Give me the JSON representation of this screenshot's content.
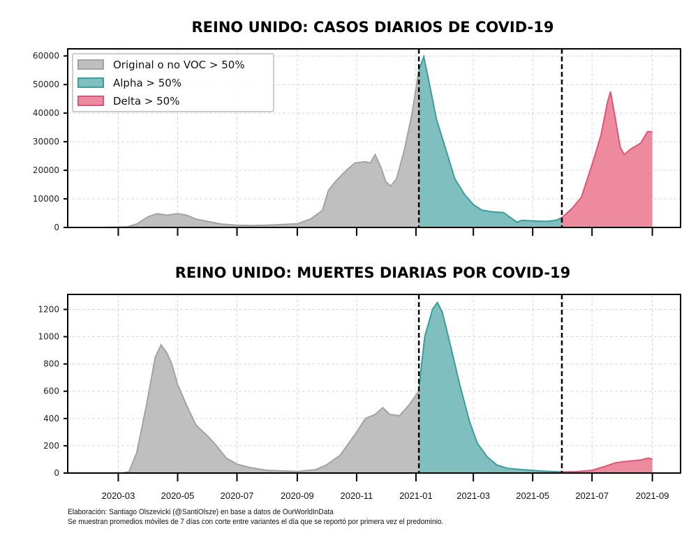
{
  "chart_data": [
    {
      "type": "area",
      "title": "REINO UNIDO: CASOS DIARIOS DE COVID-19",
      "xlabel": "",
      "ylabel": "",
      "xlim": [
        "2020-01-09",
        "2021-09-30"
      ],
      "ylim": [
        0,
        62500
      ],
      "yticks": [
        0,
        10000,
        20000,
        30000,
        40000,
        50000,
        60000
      ],
      "xticks": [
        "2020-03",
        "2020-05",
        "2020-07",
        "2020-09",
        "2020-11",
        "2021-01",
        "2021-03",
        "2021-05",
        "2021-07",
        "2021-09"
      ],
      "show_xtick_labels": false,
      "grid": true,
      "legend_position": "top-left",
      "vlines": [
        "2021-01-04",
        "2021-05-31"
      ],
      "series": [
        {
          "name": "Original o no VOC > 50%",
          "color": "#bfbfbf",
          "edge": "#a3a3a3",
          "points": [
            [
              "2020-02-15",
              0
            ],
            [
              "2020-03-10",
              200
            ],
            [
              "2020-03-20",
              1200
            ],
            [
              "2020-04-01",
              3800
            ],
            [
              "2020-04-10",
              4800
            ],
            [
              "2020-04-20",
              4300
            ],
            [
              "2020-05-01",
              4800
            ],
            [
              "2020-05-10",
              4300
            ],
            [
              "2020-05-20",
              2900
            ],
            [
              "2020-06-01",
              2100
            ],
            [
              "2020-06-15",
              1200
            ],
            [
              "2020-07-01",
              800
            ],
            [
              "2020-07-15",
              650
            ],
            [
              "2020-08-01",
              800
            ],
            [
              "2020-08-15",
              1000
            ],
            [
              "2020-09-01",
              1300
            ],
            [
              "2020-09-15",
              3000
            ],
            [
              "2020-09-27",
              6000
            ],
            [
              "2020-10-03",
              13000
            ],
            [
              "2020-10-10",
              16000
            ],
            [
              "2020-10-20",
              19500
            ],
            [
              "2020-10-30",
              22500
            ],
            [
              "2020-11-10",
              23000
            ],
            [
              "2020-11-15",
              22500
            ],
            [
              "2020-11-20",
              25500
            ],
            [
              "2020-11-26",
              21000
            ],
            [
              "2020-12-01",
              16000
            ],
            [
              "2020-12-06",
              14500
            ],
            [
              "2020-12-12",
              17000
            ],
            [
              "2020-12-20",
              27000
            ],
            [
              "2020-12-28",
              40000
            ],
            [
              "2021-01-04",
              55000
            ]
          ]
        },
        {
          "name": "Alpha > 50%",
          "color": "#7fbfbf",
          "edge": "#3d9c9c",
          "points": [
            [
              "2021-01-04",
              55000
            ],
            [
              "2021-01-09",
              59800
            ],
            [
              "2021-01-15",
              50000
            ],
            [
              "2021-01-22",
              38000
            ],
            [
              "2021-02-01",
              27000
            ],
            [
              "2021-02-10",
              17000
            ],
            [
              "2021-02-20",
              11500
            ],
            [
              "2021-03-01",
              8000
            ],
            [
              "2021-03-10",
              6000
            ],
            [
              "2021-03-20",
              5500
            ],
            [
              "2021-04-01",
              5200
            ],
            [
              "2021-04-10",
              3000
            ],
            [
              "2021-04-15",
              1800
            ],
            [
              "2021-04-20",
              2500
            ],
            [
              "2021-05-01",
              2300
            ],
            [
              "2021-05-15",
              2100
            ],
            [
              "2021-05-25",
              2500
            ],
            [
              "2021-05-31",
              3400
            ]
          ]
        },
        {
          "name": "Delta > 50%",
          "color": "#ee8a9e",
          "edge": "#dd5577",
          "points": [
            [
              "2021-05-31",
              3400
            ],
            [
              "2021-06-10",
              6500
            ],
            [
              "2021-06-20",
              10500
            ],
            [
              "2021-07-01",
              22000
            ],
            [
              "2021-07-10",
              32000
            ],
            [
              "2021-07-17",
              44000
            ],
            [
              "2021-07-20",
              47500
            ],
            [
              "2021-07-24",
              40000
            ],
            [
              "2021-07-30",
              28000
            ],
            [
              "2021-08-03",
              25500
            ],
            [
              "2021-08-10",
              27500
            ],
            [
              "2021-08-20",
              29500
            ],
            [
              "2021-08-27",
              33500
            ],
            [
              "2021-09-01",
              33500
            ]
          ]
        }
      ]
    },
    {
      "type": "area",
      "title": "REINO UNIDO: MUERTES DIARIAS POR COVID-19",
      "xlabel": "",
      "ylabel": "",
      "xlim": [
        "2020-01-09",
        "2021-09-30"
      ],
      "ylim": [
        0,
        1310
      ],
      "yticks": [
        0,
        200,
        400,
        600,
        800,
        1000,
        1200
      ],
      "xticks": [
        "2020-03",
        "2020-05",
        "2020-07",
        "2020-09",
        "2020-11",
        "2021-01",
        "2021-03",
        "2021-05",
        "2021-07",
        "2021-09"
      ],
      "show_xtick_labels": true,
      "grid": true,
      "vlines": [
        "2021-01-04",
        "2021-05-31"
      ],
      "series": [
        {
          "name": "Original o no VOC > 50%",
          "color": "#bfbfbf",
          "edge": "#a3a3a3",
          "points": [
            [
              "2020-03-05",
              0
            ],
            [
              "2020-03-12",
              10
            ],
            [
              "2020-03-20",
              150
            ],
            [
              "2020-03-30",
              500
            ],
            [
              "2020-04-08",
              850
            ],
            [
              "2020-04-14",
              940
            ],
            [
              "2020-04-20",
              880
            ],
            [
              "2020-04-25",
              800
            ],
            [
              "2020-05-01",
              650
            ],
            [
              "2020-05-10",
              500
            ],
            [
              "2020-05-20",
              350
            ],
            [
              "2020-06-01",
              270
            ],
            [
              "2020-06-10",
              200
            ],
            [
              "2020-06-20",
              110
            ],
            [
              "2020-07-01",
              65
            ],
            [
              "2020-07-15",
              40
            ],
            [
              "2020-08-01",
              20
            ],
            [
              "2020-09-01",
              12
            ],
            [
              "2020-09-20",
              25
            ],
            [
              "2020-10-01",
              60
            ],
            [
              "2020-10-15",
              130
            ],
            [
              "2020-11-01",
              300
            ],
            [
              "2020-11-10",
              400
            ],
            [
              "2020-11-20",
              430
            ],
            [
              "2020-11-28",
              480
            ],
            [
              "2020-12-05",
              430
            ],
            [
              "2020-12-15",
              420
            ],
            [
              "2020-12-25",
              500
            ],
            [
              "2021-01-04",
              600
            ]
          ]
        },
        {
          "name": "Alpha > 50%",
          "color": "#7fbfbf",
          "edge": "#3d9c9c",
          "points": [
            [
              "2021-01-04",
              620
            ],
            [
              "2021-01-10",
              1000
            ],
            [
              "2021-01-18",
              1200
            ],
            [
              "2021-01-23",
              1250
            ],
            [
              "2021-01-28",
              1180
            ],
            [
              "2021-02-05",
              950
            ],
            [
              "2021-02-15",
              650
            ],
            [
              "2021-02-25",
              380
            ],
            [
              "2021-03-05",
              220
            ],
            [
              "2021-03-15",
              120
            ],
            [
              "2021-03-25",
              60
            ],
            [
              "2021-04-05",
              35
            ],
            [
              "2021-04-20",
              25
            ],
            [
              "2021-05-10",
              15
            ],
            [
              "2021-05-31",
              8
            ]
          ]
        },
        {
          "name": "Delta > 50%",
          "color": "#ee8a9e",
          "edge": "#dd5577",
          "points": [
            [
              "2021-05-31",
              8
            ],
            [
              "2021-06-15",
              10
            ],
            [
              "2021-07-01",
              20
            ],
            [
              "2021-07-15",
              50
            ],
            [
              "2021-07-25",
              75
            ],
            [
              "2021-08-05",
              85
            ],
            [
              "2021-08-20",
              95
            ],
            [
              "2021-08-28",
              110
            ],
            [
              "2021-09-01",
              100
            ]
          ]
        }
      ]
    }
  ],
  "footer": {
    "line1": "Elaboración: Santiago Olszevicki (@SantiOlsze) en base a datos de OurWorldInData",
    "line2": "Se muestran promedios móviles de 7 días con corte entre variantes el día que se reportó por primera vez el predominio."
  }
}
